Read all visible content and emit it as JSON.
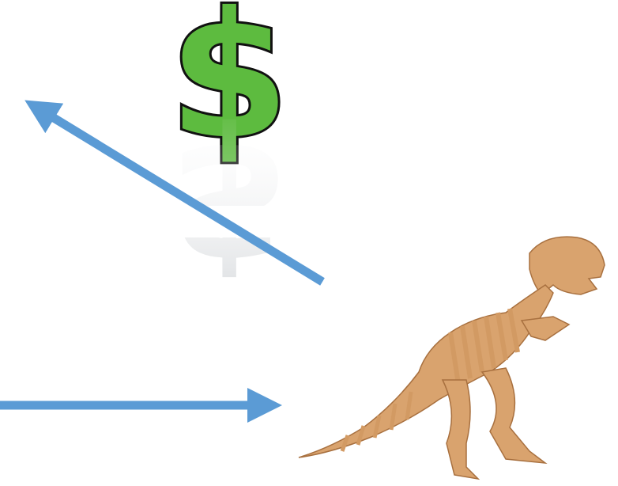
{
  "icon": {
    "symbol": "$"
  }
}
